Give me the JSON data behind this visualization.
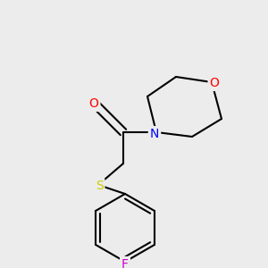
{
  "background_color": "#ececec",
  "bond_color": "#000000",
  "atom_colors": {
    "O_carbonyl": "#ff0000",
    "O_ring": "#ff0000",
    "N": "#0000ff",
    "S": "#cccc00",
    "F": "#cc00cc"
  },
  "atom_labels": {
    "O_carbonyl": "O",
    "O_ring": "O",
    "N": "N",
    "S": "S",
    "F": "F"
  },
  "figsize": [
    3.0,
    3.0
  ],
  "dpi": 100
}
